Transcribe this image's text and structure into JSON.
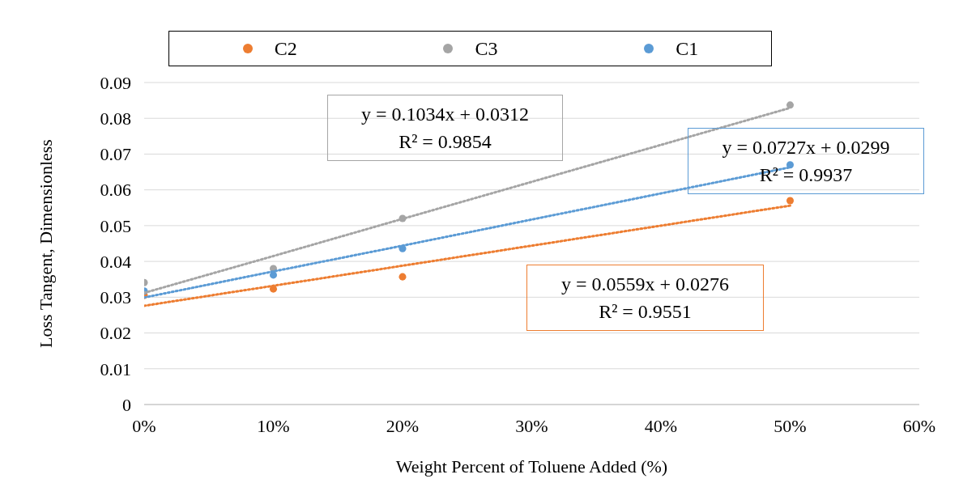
{
  "chart_data": {
    "type": "scatter",
    "xlabel": "Weight Percent of Toluene Added (%)",
    "ylabel": "Loss Tangent, Dimensionless",
    "x": [
      0,
      0.1,
      0.2,
      0.5
    ],
    "series": [
      {
        "name": "C2",
        "color": "#ed7d31",
        "values": [
          0.0305,
          0.0323,
          0.0357,
          0.057
        ]
      },
      {
        "name": "C3",
        "color": "#a5a5a5",
        "values": [
          0.0341,
          0.038,
          0.052,
          0.0837
        ]
      },
      {
        "name": "C1",
        "color": "#5b9bd5",
        "values": [
          0.0317,
          0.0362,
          0.0436,
          0.067
        ]
      },
      {
        "type": "line",
        "color": "#ed7d31",
        "line_style": "dotted",
        "marker": "none",
        "values": [
          0.0276,
          0.0332,
          0.0388,
          0.0556
        ]
      },
      {
        "type": "line",
        "color": "#a5a5a5",
        "line_style": "dotted",
        "marker": "none",
        "values": [
          0.0312,
          0.0415,
          0.0519,
          0.0829
        ]
      },
      {
        "type": "line",
        "color": "#5b9bd5",
        "line_style": "dotted",
        "marker": "none",
        "values": [
          0.0299,
          0.0372,
          0.0444,
          0.0663
        ]
      }
    ],
    "annotations": [
      "y = 0.0559x + 0.0276\nR² = 0.9551",
      "y = 0.1034x + 0.0312\nR² = 0.9854",
      "y = 0.0727x + 0.0299\nR² = 0.9937"
    ],
    "xlim": [
      0,
      0.6
    ],
    "xticks": [
      {
        "value": 0,
        "label": "0%"
      },
      {
        "value": 0.1,
        "label": "10%"
      },
      {
        "value": 0.2,
        "label": "20%"
      },
      {
        "value": 0.3,
        "label": "30%"
      },
      {
        "value": 0.4,
        "label": "40%"
      },
      {
        "value": 0.5,
        "label": "50%"
      },
      {
        "value": 0.6,
        "label": "60%"
      }
    ],
    "ylim": [
      0,
      0.09
    ],
    "yticks": [
      0,
      0.01,
      0.02,
      0.03,
      0.04,
      0.05,
      0.06,
      0.07,
      0.08,
      0.09
    ],
    "grid": "y",
    "legend": "top",
    "marker": "circle"
  }
}
